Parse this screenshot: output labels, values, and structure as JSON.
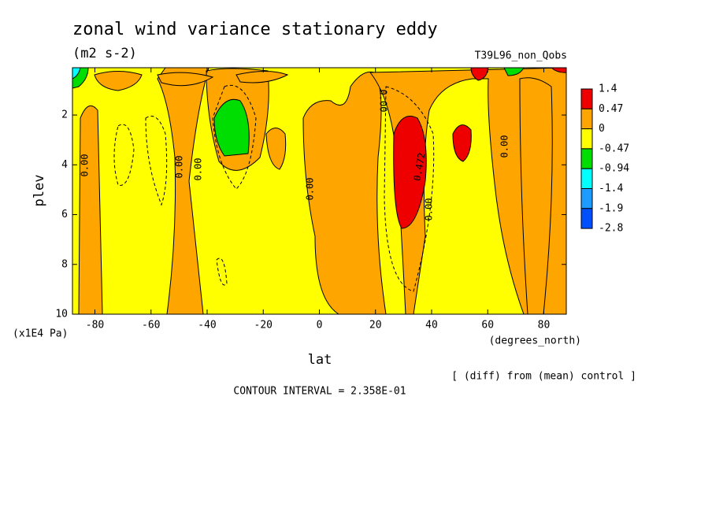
{
  "chart_data": {
    "type": "contour",
    "title": "zonal wind variance stationary eddy",
    "subtitle": "(m2 s-2)",
    "annotation": "T39L96_non_Qobs",
    "xlabel": "lat",
    "xunit": "(degrees_north)",
    "ylabel": "plev",
    "yunit": "(x1E4 Pa)",
    "footer": "[ (diff) from (mean) control ]",
    "contour_interval": "CONTOUR INTERVAL = 2.358E-01",
    "xlim": [
      -88,
      88
    ],
    "ylim": [
      10,
      0.1
    ],
    "xticks": [
      -80,
      -60,
      -40,
      -20,
      0,
      20,
      40,
      60,
      80
    ],
    "yticks": [
      2,
      4,
      6,
      8,
      10
    ],
    "levels": [
      1.4,
      0.47,
      0,
      -0.47,
      -0.94,
      -1.4,
      -1.9,
      -2.8
    ],
    "colors": [
      "#ee0000",
      "#ffa500",
      "#ffff00",
      "#00dd00",
      "#00ffff",
      "#1e9bff",
      "#0050ff"
    ],
    "contour_labels": [
      "0.00",
      "0.00",
      "0.00",
      "0.00",
      "0.00",
      "0.00",
      "0.00",
      "0.472"
    ]
  }
}
